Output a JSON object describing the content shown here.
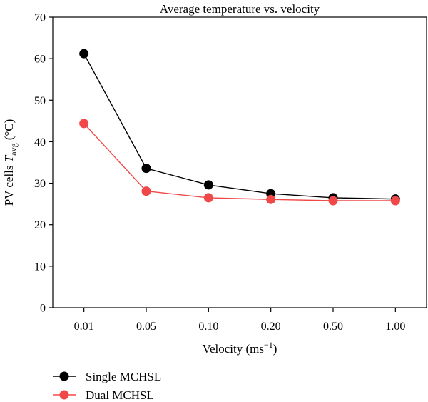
{
  "chart_data": {
    "type": "line",
    "title": "Average temperature vs. velocity",
    "xlabel": {
      "main": "Velocity (ms",
      "sup": "−1",
      "close": ")"
    },
    "ylabel": {
      "pre": "PV cells ",
      "var": "T",
      "sub": "avg",
      "post": " (°C)"
    },
    "categories": [
      "0.01",
      "0.05",
      "0.10",
      "0.20",
      "0.50",
      "1.00"
    ],
    "ylim": [
      0,
      70
    ],
    "yticks": [
      "0",
      "10",
      "20",
      "30",
      "40",
      "50",
      "60",
      "70"
    ],
    "grid": false,
    "legend_position": "bottom-left, below plot",
    "series": [
      {
        "name": "Single MCHSL",
        "color": "#000000",
        "values": [
          61.2,
          33.6,
          29.6,
          27.5,
          26.5,
          26.2
        ]
      },
      {
        "name": "Dual MCHSL",
        "color": "#f04848",
        "values": [
          44.4,
          28.1,
          26.5,
          26.1,
          25.8,
          25.8
        ]
      }
    ]
  }
}
